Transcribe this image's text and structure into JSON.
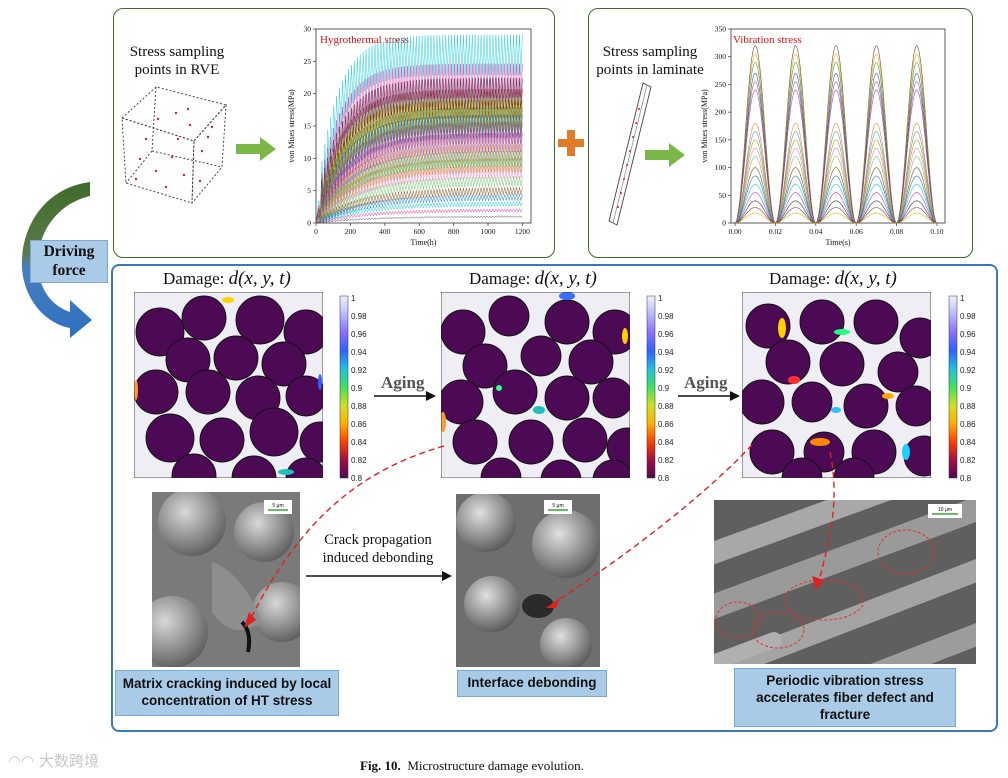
{
  "panels": {
    "hygro": {
      "left_text": "Stress sampling points in RVE",
      "chart_title": "Hygrothermal stress",
      "ylabel": "von Mises stress(MPa)",
      "xlabel": "Time(h)",
      "yticks": [
        "0",
        "5",
        "10",
        "15",
        "20",
        "25",
        "30"
      ],
      "xticks": [
        "0",
        "200",
        "400",
        "600",
        "800",
        "1000",
        "1200"
      ]
    },
    "vib": {
      "left_text": "Stress sampling points in laminate",
      "chart_title": "Vibration stress",
      "ylabel": "von Mises stress(MPa)",
      "xlabel": "Time(s)",
      "yticks": [
        "0",
        "50",
        "100",
        "150",
        "200",
        "250",
        "300",
        "350"
      ],
      "xticks": [
        "0.00",
        "0.02",
        "0.04",
        "0.06",
        "0.08",
        "0.10"
      ]
    }
  },
  "driving_force": "Driving force",
  "damage": {
    "title_prefix": "Damage:",
    "title_formula": "d(x, y, t)",
    "aging_label": "Aging",
    "colorbar_ticks": [
      "1",
      "0.98",
      "0.96",
      "0.94",
      "0.92",
      "0.9",
      "0.88",
      "0.86",
      "0.84",
      "0.82",
      "0.8"
    ]
  },
  "arrows": {
    "crack_text": "Crack propagation induced debonding"
  },
  "labels": {
    "matrix": "Matrix cracking induced by local concentration of HT stress",
    "interface": "Interface debonding",
    "periodic": "Periodic vibration stress accelerates fiber defect and fracture"
  },
  "sem_scales": [
    "5 μm",
    "5 μm",
    "10 μm"
  ],
  "caption": {
    "label": "Fig. 10.",
    "text": "Microstructure damage evolution."
  },
  "watermark": "大数跨境",
  "colors": {
    "panel_green": "#3f6b2a",
    "panel_blue": "#3a78b8",
    "label_bg": "#a9cbe8",
    "damage_purple": "#4c0a55",
    "arrow_green": "#7ab648",
    "plus_orange": "#e07b28",
    "dash_red": "#e02020"
  }
}
